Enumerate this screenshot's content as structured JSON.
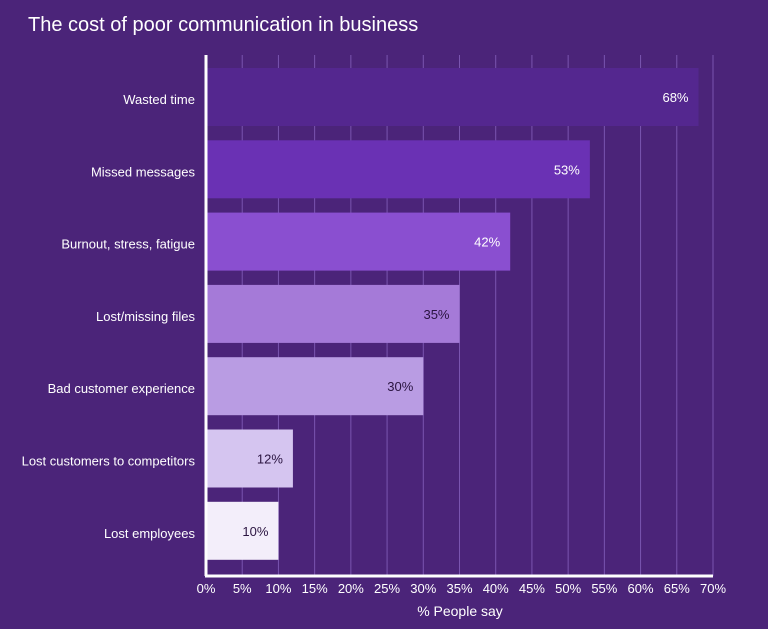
{
  "chart_data": {
    "type": "bar",
    "orientation": "horizontal",
    "title": "The cost of poor communication in business",
    "xlabel": "% People say",
    "ylabel": "",
    "xlim": [
      0,
      70
    ],
    "tick_step": 5,
    "tick_labels": [
      "0%",
      "5%",
      "10%",
      "15%",
      "20%",
      "25%",
      "30%",
      "35%",
      "40%",
      "45%",
      "50%",
      "55%",
      "60%",
      "65%",
      "70%"
    ],
    "grid": "vertical",
    "categories": [
      "Wasted time",
      "Missed messages",
      "Burnout, stress, fatigue",
      "Lost/missing files",
      "Bad customer experience",
      "Lost customers to competitors",
      "Lost employees"
    ],
    "values": [
      68,
      53,
      42,
      35,
      30,
      12,
      10
    ],
    "value_labels": [
      "68%",
      "53%",
      "42%",
      "35%",
      "30%",
      "12%",
      "10%"
    ],
    "colors": [
      "#54278f",
      "#6a31b4",
      "#8a4fd0",
      "#a57ad8",
      "#b99ce3",
      "#d5c5f0",
      "#f3eefa"
    ],
    "label_colors": [
      "#ffffff",
      "#ffffff",
      "#ffffff",
      "#2a1440",
      "#2a1440",
      "#2a1440",
      "#2a1440"
    ]
  }
}
